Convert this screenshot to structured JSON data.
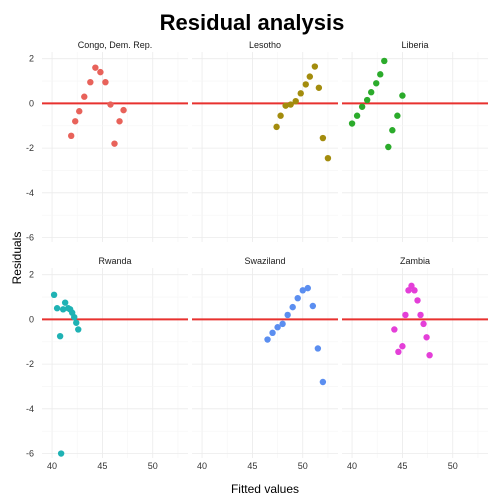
{
  "chart_data": {
    "type": "scatter",
    "title": "Residual analysis",
    "xlabel": "Fitted values",
    "ylabel": "Residuals",
    "xlim": [
      39,
      53.5
    ],
    "ylim": [
      -6.2,
      2.3
    ],
    "x_ticks": [
      40,
      45,
      50
    ],
    "y_ticks": [
      2,
      0,
      -2,
      -4,
      -6
    ],
    "grid": true,
    "reference_line": {
      "y": 0,
      "color": "#e8312f"
    },
    "panels": [
      {
        "name": "Congo, Dem. Rep.",
        "color": "#e8625a",
        "points": [
          {
            "x": 41.9,
            "y": -1.45
          },
          {
            "x": 42.3,
            "y": -0.8
          },
          {
            "x": 42.7,
            "y": -0.35
          },
          {
            "x": 43.2,
            "y": 0.3
          },
          {
            "x": 43.8,
            "y": 0.95
          },
          {
            "x": 44.3,
            "y": 1.6
          },
          {
            "x": 44.8,
            "y": 1.4
          },
          {
            "x": 45.3,
            "y": 0.95
          },
          {
            "x": 45.8,
            "y": -0.05
          },
          {
            "x": 46.2,
            "y": -1.8
          },
          {
            "x": 46.7,
            "y": -0.8
          },
          {
            "x": 47.1,
            "y": -0.3
          }
        ]
      },
      {
        "name": "Lesotho",
        "color": "#a38c0d",
        "points": [
          {
            "x": 47.4,
            "y": -1.05
          },
          {
            "x": 47.8,
            "y": -0.55
          },
          {
            "x": 48.3,
            "y": -0.1
          },
          {
            "x": 48.8,
            "y": -0.05
          },
          {
            "x": 49.3,
            "y": 0.1
          },
          {
            "x": 49.8,
            "y": 0.45
          },
          {
            "x": 50.3,
            "y": 0.85
          },
          {
            "x": 50.7,
            "y": 1.2
          },
          {
            "x": 51.2,
            "y": 1.65
          },
          {
            "x": 51.6,
            "y": 0.7
          },
          {
            "x": 52.0,
            "y": -1.55
          },
          {
            "x": 52.5,
            "y": -2.45
          }
        ]
      },
      {
        "name": "Liberia",
        "color": "#2bab2b",
        "points": [
          {
            "x": 40.0,
            "y": -0.9
          },
          {
            "x": 40.5,
            "y": -0.55
          },
          {
            "x": 41.0,
            "y": -0.15
          },
          {
            "x": 41.5,
            "y": 0.15
          },
          {
            "x": 41.9,
            "y": 0.5
          },
          {
            "x": 42.4,
            "y": 0.9
          },
          {
            "x": 42.8,
            "y": 1.3
          },
          {
            "x": 43.2,
            "y": 1.9
          },
          {
            "x": 43.6,
            "y": -1.95
          },
          {
            "x": 44.0,
            "y": -1.2
          },
          {
            "x": 44.5,
            "y": -0.55
          },
          {
            "x": 45.0,
            "y": 0.35
          }
        ]
      },
      {
        "name": "Rwanda",
        "color": "#1fb2b4",
        "points": [
          {
            "x": 40.2,
            "y": 1.1
          },
          {
            "x": 40.5,
            "y": 0.5
          },
          {
            "x": 40.8,
            "y": -0.75
          },
          {
            "x": 41.1,
            "y": 0.45
          },
          {
            "x": 41.3,
            "y": 0.75
          },
          {
            "x": 41.6,
            "y": 0.5
          },
          {
            "x": 41.8,
            "y": 0.45
          },
          {
            "x": 42.0,
            "y": 0.3
          },
          {
            "x": 42.2,
            "y": 0.1
          },
          {
            "x": 42.4,
            "y": -0.15
          },
          {
            "x": 42.6,
            "y": -0.45
          },
          {
            "x": 40.9,
            "y": -6.0
          }
        ]
      },
      {
        "name": "Swaziland",
        "color": "#5b8ef0",
        "points": [
          {
            "x": 46.5,
            "y": -0.9
          },
          {
            "x": 47.0,
            "y": -0.6
          },
          {
            "x": 47.5,
            "y": -0.35
          },
          {
            "x": 48.0,
            "y": -0.2
          },
          {
            "x": 48.5,
            "y": 0.2
          },
          {
            "x": 49.0,
            "y": 0.55
          },
          {
            "x": 49.5,
            "y": 0.95
          },
          {
            "x": 50.0,
            "y": 1.3
          },
          {
            "x": 50.5,
            "y": 1.4
          },
          {
            "x": 51.0,
            "y": 0.6
          },
          {
            "x": 51.5,
            "y": -1.3
          },
          {
            "x": 52.0,
            "y": -2.8
          }
        ]
      },
      {
        "name": "Zambia",
        "color": "#e43fd8",
        "points": [
          {
            "x": 44.2,
            "y": -0.45
          },
          {
            "x": 44.6,
            "y": -1.45
          },
          {
            "x": 45.0,
            "y": -1.2
          },
          {
            "x": 45.3,
            "y": 0.2
          },
          {
            "x": 45.6,
            "y": 1.3
          },
          {
            "x": 45.9,
            "y": 1.5
          },
          {
            "x": 46.2,
            "y": 1.3
          },
          {
            "x": 46.5,
            "y": 0.85
          },
          {
            "x": 46.8,
            "y": 0.2
          },
          {
            "x": 47.1,
            "y": -0.2
          },
          {
            "x": 47.4,
            "y": -0.8
          },
          {
            "x": 47.7,
            "y": -1.6
          }
        ]
      }
    ]
  }
}
